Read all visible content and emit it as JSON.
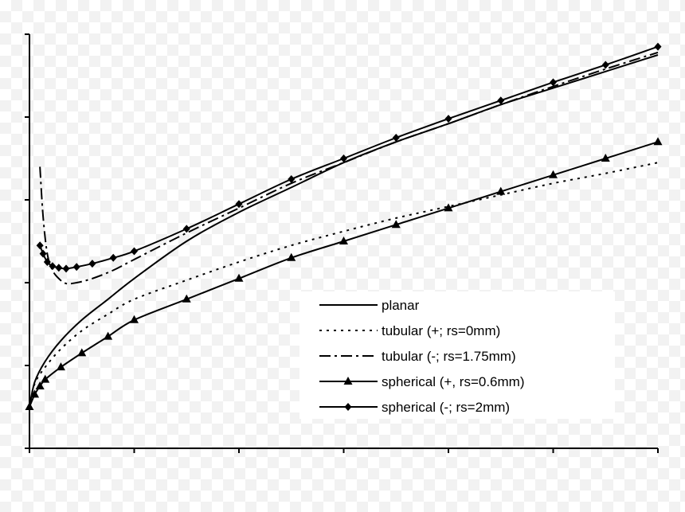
{
  "chart_data": {
    "type": "line",
    "title": "",
    "xlabel": "",
    "ylabel": "",
    "xlim": [
      0,
      6
    ],
    "ylim": [
      0,
      5
    ],
    "grid": false,
    "legend_position": "lower-right",
    "series": [
      {
        "name": "planar",
        "style": "solid",
        "marker": "none",
        "x": [
          0,
          0.05,
          0.15,
          0.3,
          0.5,
          0.75,
          1.0,
          1.5,
          2.0,
          2.5,
          3.0,
          3.5,
          4.0,
          4.5,
          5.0,
          5.5,
          6.0
        ],
        "y": [
          0.5,
          0.8,
          1.05,
          1.3,
          1.55,
          1.8,
          2.05,
          2.5,
          2.85,
          3.15,
          3.45,
          3.7,
          3.92,
          4.15,
          4.35,
          4.55,
          4.75
        ]
      },
      {
        "name": "tubular (+; rs=0mm)",
        "style": "dotted",
        "marker": "none",
        "x": [
          0,
          0.05,
          0.15,
          0.3,
          0.5,
          0.75,
          1.0,
          1.5,
          2.0,
          2.5,
          3.0,
          3.5,
          4.0,
          4.5,
          5.0,
          5.5,
          6.0
        ],
        "y": [
          0.5,
          0.78,
          0.98,
          1.2,
          1.42,
          1.62,
          1.8,
          2.03,
          2.25,
          2.45,
          2.62,
          2.78,
          2.92,
          3.06,
          3.2,
          3.32,
          3.45
        ]
      },
      {
        "name": "tubular (-; rs=1.75mm)",
        "style": "dashdot",
        "marker": "none",
        "x": [
          0.1,
          0.13,
          0.17,
          0.22,
          0.28,
          0.35,
          0.45,
          0.6,
          0.8,
          1.0,
          1.5,
          2.0,
          2.5,
          3.0,
          3.5,
          4.0,
          4.5,
          5.0,
          5.5,
          6.0
        ],
        "y": [
          3.4,
          2.8,
          2.35,
          2.15,
          2.05,
          1.99,
          2.0,
          2.05,
          2.15,
          2.28,
          2.6,
          2.9,
          3.2,
          3.45,
          3.7,
          3.92,
          4.15,
          4.37,
          4.58,
          4.78
        ]
      },
      {
        "name": "spherical (+, rs=0.6mm)",
        "style": "solid",
        "marker": "triangle",
        "x": [
          0,
          0.05,
          0.1,
          0.15,
          0.3,
          0.5,
          0.75,
          1.0,
          1.5,
          2.0,
          2.5,
          3.0,
          3.5,
          4.0,
          4.5,
          5.0,
          5.5,
          6.0
        ],
        "y": [
          0.5,
          0.65,
          0.75,
          0.83,
          0.98,
          1.15,
          1.35,
          1.55,
          1.8,
          2.05,
          2.3,
          2.5,
          2.7,
          2.9,
          3.1,
          3.3,
          3.5,
          3.7
        ]
      },
      {
        "name": "spherical (-; rs=2mm)",
        "style": "solid",
        "marker": "diamond",
        "x": [
          0.1,
          0.13,
          0.17,
          0.22,
          0.28,
          0.35,
          0.45,
          0.6,
          0.8,
          1.0,
          1.5,
          2.0,
          2.5,
          3.0,
          3.5,
          4.0,
          4.5,
          5.0,
          5.5,
          6.0
        ],
        "y": [
          2.45,
          2.35,
          2.25,
          2.2,
          2.18,
          2.17,
          2.19,
          2.23,
          2.3,
          2.38,
          2.65,
          2.95,
          3.25,
          3.5,
          3.75,
          3.98,
          4.2,
          4.42,
          4.63,
          4.85
        ]
      }
    ]
  }
}
